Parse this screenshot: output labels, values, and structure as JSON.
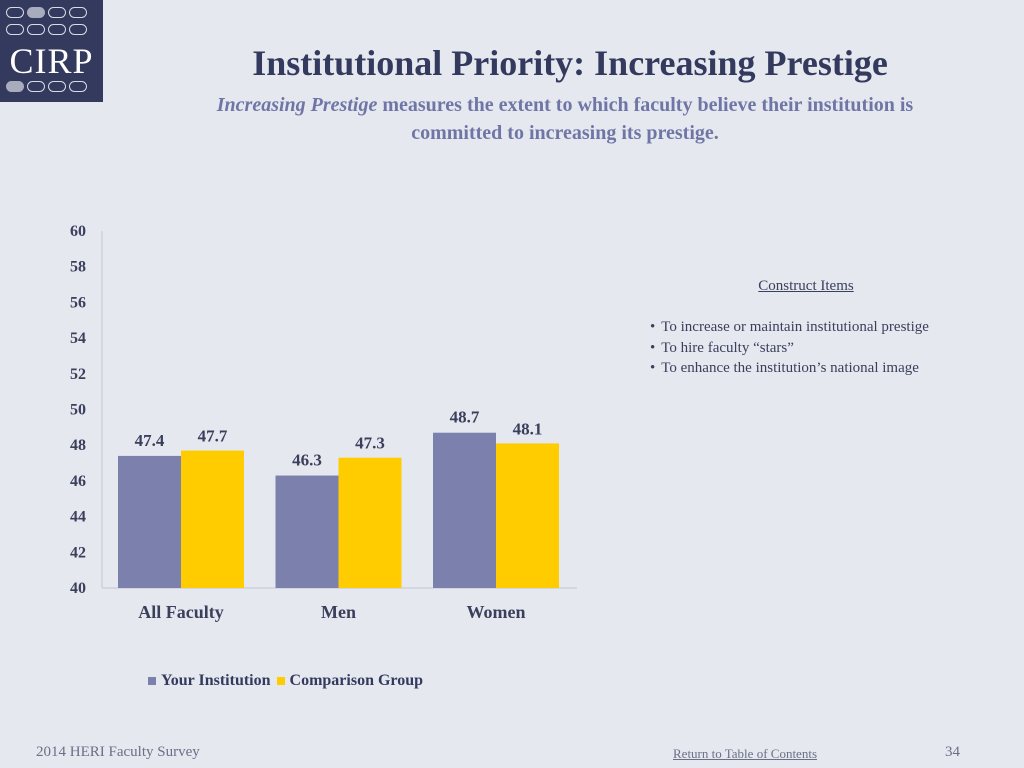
{
  "logo": {
    "text": "CIRP"
  },
  "title": "Institutional Priority: Increasing Prestige",
  "subtitle": {
    "emphasis": "Increasing Prestige",
    "line1_rest": " measures the extent to which faculty believe their institution is",
    "line2": "committed to increasing its prestige."
  },
  "construct": {
    "title": "Construct Items",
    "items": [
      "To increase or maintain institutional prestige",
      "To hire faculty “stars”",
      "To enhance the institution’s national image"
    ]
  },
  "chart_data": {
    "type": "bar",
    "title": "",
    "xlabel": "",
    "ylabel": "",
    "ylim": [
      40,
      60
    ],
    "yticks": [
      40,
      42,
      44,
      46,
      48,
      50,
      52,
      54,
      56,
      58,
      60
    ],
    "categories": [
      "All Faculty",
      "Men",
      "Women"
    ],
    "series": [
      {
        "name": "Your Institution",
        "color": "#7b80ad",
        "values": [
          47.4,
          46.3,
          48.7
        ]
      },
      {
        "name": "Comparison Group",
        "color": "#ffcc00",
        "values": [
          47.7,
          47.3,
          48.1
        ]
      }
    ],
    "legend_position": "bottom-left"
  },
  "footer": {
    "left": "2014 HERI Faculty Survey",
    "link": "Return to Table of Contents",
    "page": "34"
  }
}
